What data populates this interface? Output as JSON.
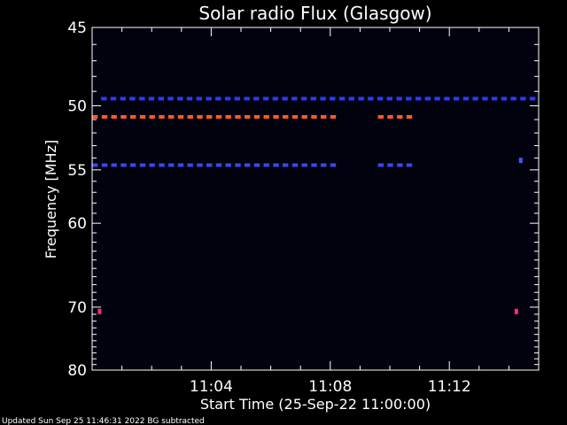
{
  "chart_data": {
    "type": "heatmap",
    "title": "Solar radio Flux (Glasgow)",
    "xlabel": "Start Time (25-Sep-22 11:00:00)",
    "ylabel": "Frequency [MHz]",
    "x_unit": "minutes",
    "xlim": [
      0,
      15
    ],
    "ylim": [
      45,
      80
    ],
    "y_scale": "reciprocal",
    "x_ticks": [
      {
        "value": 4,
        "label": "11:04"
      },
      {
        "value": 8,
        "label": "11:08"
      },
      {
        "value": 12,
        "label": "11:12"
      }
    ],
    "y_ticks": [
      {
        "value": 45,
        "label": "45"
      },
      {
        "value": 50,
        "label": "50"
      },
      {
        "value": 55,
        "label": "55"
      },
      {
        "value": 60,
        "label": "60"
      },
      {
        "value": 70,
        "label": "70"
      },
      {
        "value": 80,
        "label": "80"
      }
    ],
    "background_color": "#02020f",
    "bands": [
      {
        "freq": 49.5,
        "color": "#2a3bff",
        "segments": [
          [
            0.3,
            15
          ]
        ]
      },
      {
        "freq": 50.8,
        "color": "#ff5a1f",
        "segments": [
          [
            0.0,
            8.2
          ],
          [
            9.6,
            10.8
          ]
        ]
      },
      {
        "freq": 54.6,
        "color": "#3a48e8",
        "segments": [
          [
            0.0,
            8.2
          ],
          [
            9.6,
            10.8
          ]
        ]
      }
    ],
    "spots": [
      {
        "time": 0.25,
        "freq": 70.6,
        "color": "#ff3070"
      },
      {
        "time": 14.25,
        "freq": 70.6,
        "color": "#ff3070"
      },
      {
        "time": 14.4,
        "freq": 54.2,
        "color": "#4455ff"
      }
    ],
    "footer": "Updated Sun Sep 25 11:46:31 2022   BG subtracted"
  }
}
